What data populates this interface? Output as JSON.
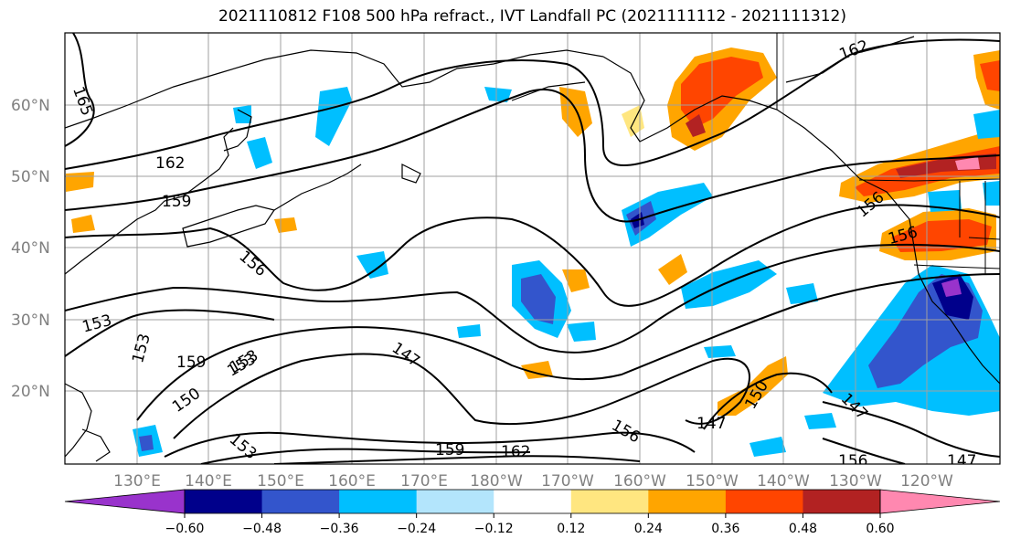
{
  "title": "2021110812 F108 500 hPa refract., IVT Landfall PC (2021111112 - 2021111312)",
  "lat_labels": [
    "60°N",
    "50°N",
    "40°N",
    "30°N",
    "20°N"
  ],
  "lon_labels": [
    "130°E",
    "140°E",
    "150°E",
    "160°E",
    "170°E",
    "180°W",
    "170°W",
    "160°W",
    "150°W",
    "140°W",
    "130°W",
    "120°W"
  ],
  "colorbar": {
    "colors": [
      "#9933cc",
      "#00008b",
      "#3355cc",
      "#00bfff",
      "#b3e5fc",
      "#ffffff",
      "#ffe680",
      "#ffa500",
      "#ff4500",
      "#b22222",
      "#ff88b0"
    ],
    "ticks": [
      "−0.60",
      "−0.48",
      "−0.36",
      "−0.24",
      "−0.12",
      "0.12",
      "0.24",
      "0.36",
      "0.48",
      "0.60"
    ]
  },
  "contour_labels": [
    "165",
    "162",
    "159",
    "156",
    "153",
    "153",
    "153",
    "159",
    "153",
    "150",
    "147",
    "153",
    "159",
    "162",
    "156",
    "147",
    "150",
    "147",
    "156",
    "147",
    "162",
    "156",
    "156"
  ]
}
